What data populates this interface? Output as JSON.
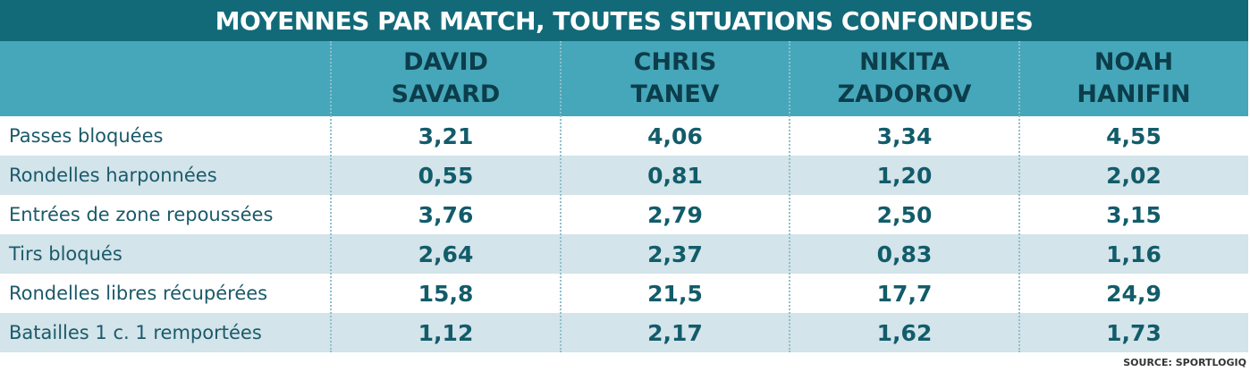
{
  "header": {
    "title": "MOYENNES PAR MATCH, TOUTES SITUATIONS CONFONDUES"
  },
  "table": {
    "columns": [
      [
        "DAVID",
        "SAVARD"
      ],
      [
        "CHRIS",
        "TANEV"
      ],
      [
        "NIKITA",
        "ZADOROV"
      ],
      [
        "NOAH",
        "HANIFIN"
      ]
    ],
    "rows": [
      [
        "Passes bloquées",
        "3,21",
        "4,06",
        "3,34",
        "4,55"
      ],
      [
        "Rondelles harponnées",
        "0,55",
        "0,81",
        "1,20",
        "2,02"
      ],
      [
        "Entrées de zone repoussées",
        "3,76",
        "2,79",
        "2,50",
        "3,15"
      ],
      [
        "Tirs bloqués",
        "2,64",
        "2,37",
        "0,83",
        "1,16"
      ],
      [
        "Rondelles libres récupérées",
        "15,8",
        "21,5",
        "17,7",
        "24,9"
      ],
      [
        "Batailles 1 c. 1 remportées",
        "1,12",
        "2,17",
        "1,62",
        "1,73"
      ]
    ]
  },
  "footer": {
    "source": "SOURCE: SPORTLOGIQ"
  }
}
